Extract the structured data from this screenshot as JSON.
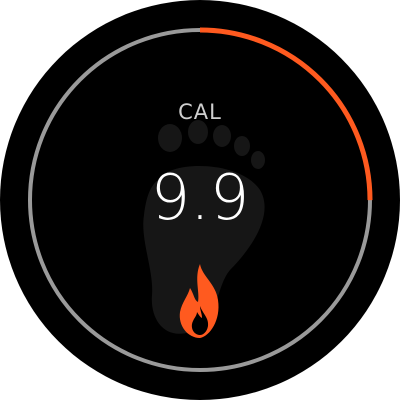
{
  "metric": {
    "label": "CAL",
    "value": "9.9",
    "goal_progress": 0.25
  },
  "icons": {
    "metric_icon": "flame-icon",
    "background_icon": "footprint-icon"
  },
  "colors": {
    "face": "#000000",
    "track": "#9a9a9a",
    "progress": "#ff5a1f",
    "icon": "#ff5a1f",
    "footprint": "#161616",
    "label": "#cfcfcf",
    "value": "#ffffff"
  }
}
